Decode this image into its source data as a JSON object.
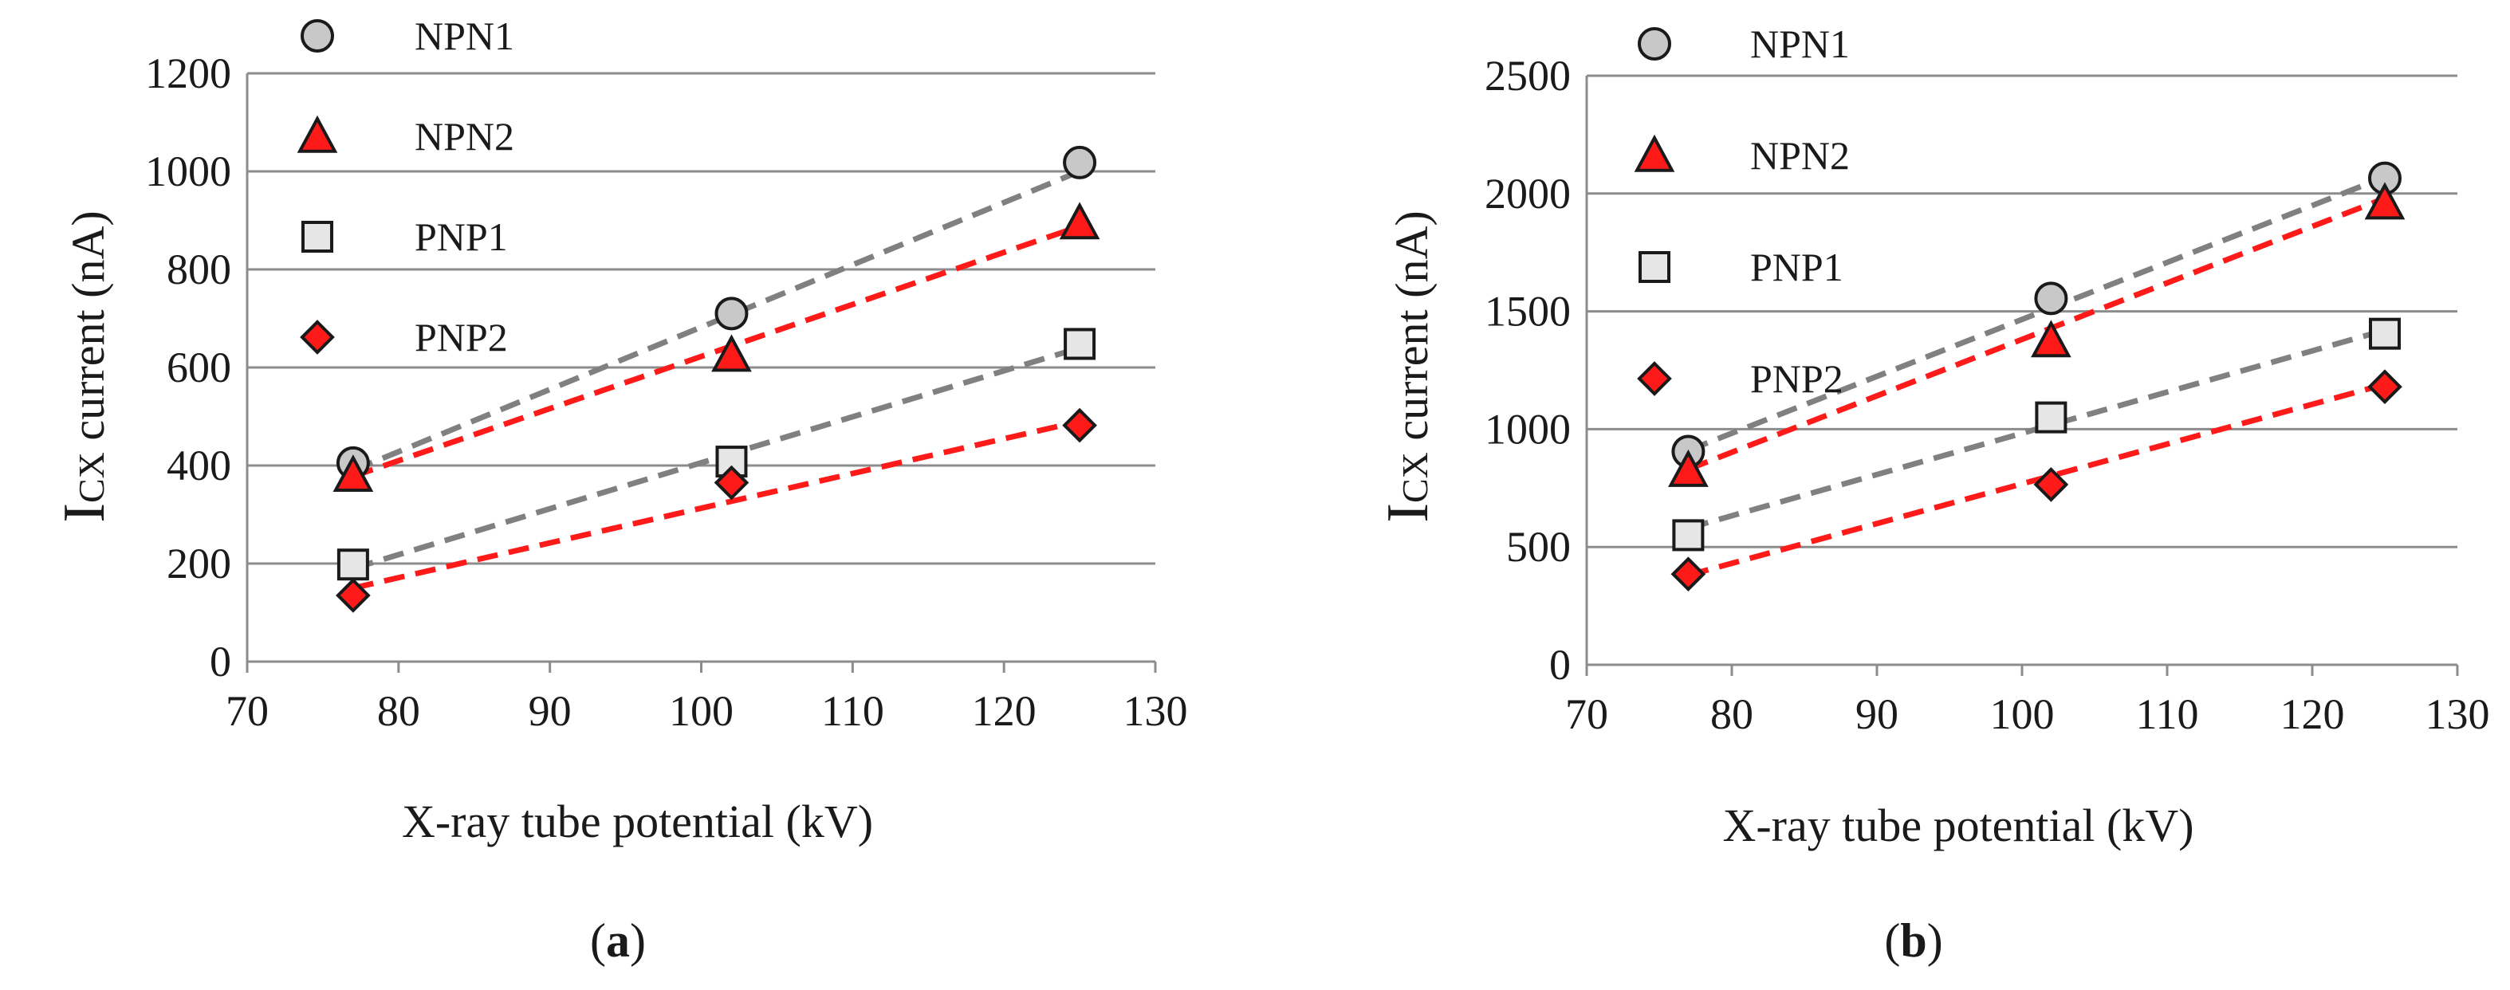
{
  "chart_data": [
    {
      "type": "scatter",
      "panel_label": "a",
      "xlabel": "X-ray tube potential (kV)",
      "ylabel_prefix": "I",
      "ylabel_subscript": "CX",
      "ylabel_rest": " current (nA)",
      "xlim": [
        70,
        130
      ],
      "ylim": [
        0,
        1200
      ],
      "xticks": [
        70,
        80,
        90,
        100,
        110,
        120,
        130
      ],
      "yticks": [
        0,
        200,
        400,
        600,
        800,
        1000,
        1200
      ],
      "grid": "horizontal",
      "legend_position": "top-left",
      "series": [
        {
          "name": "NPN1",
          "marker": "circle",
          "color": "#c8c8c8",
          "trend_color": "#808080",
          "x": [
            77,
            102,
            125
          ],
          "y": [
            405,
            710,
            1018
          ],
          "trend": [
            390,
            1000
          ]
        },
        {
          "name": "NPN2",
          "marker": "triangle",
          "color": "#ff1a1a",
          "trend_color": "#ff1a1a",
          "x": [
            77,
            102,
            125
          ],
          "y": [
            380,
            625,
            895
          ],
          "trend": [
            378,
            888
          ]
        },
        {
          "name": "PNP1",
          "marker": "square",
          "color": "#e6e6e6",
          "trend_color": "#808080",
          "x": [
            77,
            102,
            125
          ],
          "y": [
            198,
            408,
            648
          ],
          "trend": [
            190,
            640
          ]
        },
        {
          "name": "PNP2",
          "marker": "diamond",
          "color": "#ff1a1a",
          "trend_color": "#ff1a1a",
          "x": [
            77,
            102,
            125
          ],
          "y": [
            135,
            365,
            482
          ],
          "trend": [
            150,
            490
          ]
        }
      ]
    },
    {
      "type": "scatter",
      "panel_label": "b",
      "xlabel": "X-ray tube potential (kV)",
      "ylabel_prefix": "I",
      "ylabel_subscript": "CX",
      "ylabel_rest": " current (nA)",
      "xlim": [
        70,
        130
      ],
      "ylim": [
        0,
        2500
      ],
      "xticks": [
        70,
        80,
        90,
        100,
        110,
        120,
        130
      ],
      "yticks": [
        0,
        500,
        1000,
        1500,
        2000,
        2500
      ],
      "grid": "horizontal",
      "legend_position": "top-left",
      "series": [
        {
          "name": "NPN1",
          "marker": "circle",
          "color": "#c8c8c8",
          "trend_color": "#808080",
          "x": [
            77,
            102,
            125
          ],
          "y": [
            905,
            1555,
            2065
          ],
          "trend": [
            910,
            2070
          ]
        },
        {
          "name": "NPN2",
          "marker": "triangle",
          "color": "#ff1a1a",
          "trend_color": "#ff1a1a",
          "x": [
            77,
            102,
            125
          ],
          "y": [
            825,
            1375,
            1960
          ],
          "trend": [
            830,
            1980
          ]
        },
        {
          "name": "PNP1",
          "marker": "square",
          "color": "#e6e6e6",
          "trend_color": "#808080",
          "x": [
            77,
            102,
            125
          ],
          "y": [
            550,
            1050,
            1405
          ],
          "trend": [
            580,
            1420
          ]
        },
        {
          "name": "PNP2",
          "marker": "diamond",
          "color": "#ff1a1a",
          "trend_color": "#ff1a1a",
          "x": [
            77,
            102,
            125
          ],
          "y": [
            385,
            765,
            1180
          ],
          "trend": [
            380,
            1190
          ]
        }
      ]
    }
  ]
}
